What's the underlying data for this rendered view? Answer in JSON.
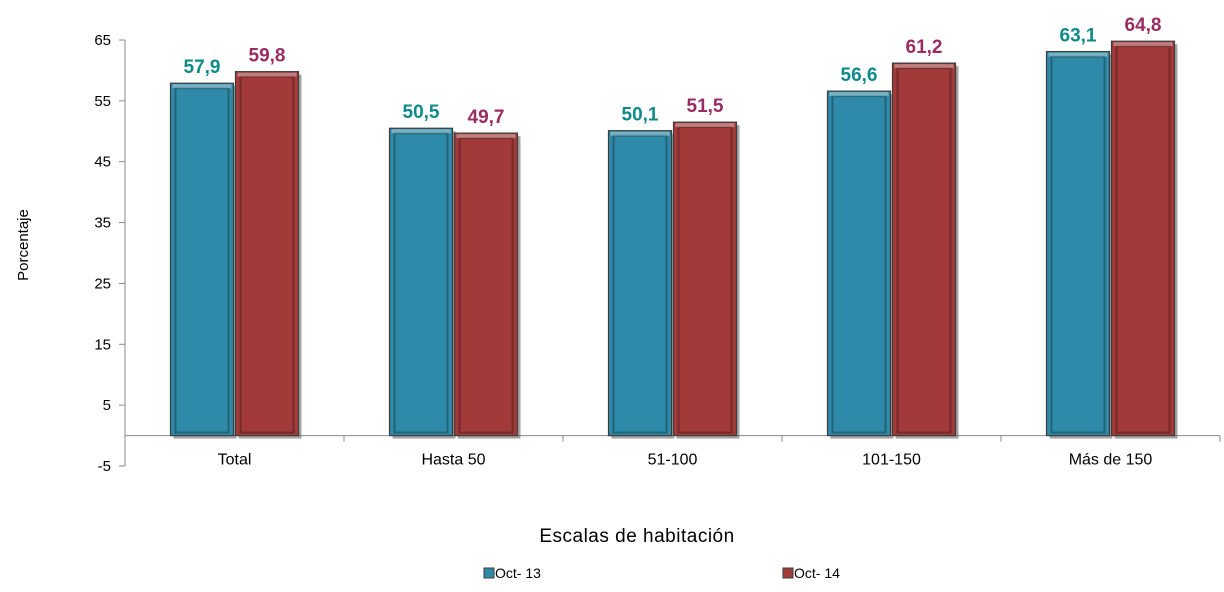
{
  "chart_data": {
    "type": "bar",
    "title": "",
    "xlabel": "Escalas de habitación",
    "ylabel": "Porcentaje",
    "categories": [
      "Total",
      "Hasta 50",
      "51-100",
      "101-150",
      "Más de 150"
    ],
    "series": [
      {
        "name": "Oct- 13",
        "values": [
          57.9,
          50.5,
          50.1,
          56.6,
          63.1
        ],
        "labels": [
          "57,9",
          "50,5",
          "50,1",
          "56,6",
          "63,1"
        ],
        "color": "#2E8AA8",
        "label_color": "#0E8A8A"
      },
      {
        "name": "Oct- 14",
        "values": [
          59.8,
          49.7,
          51.5,
          61.2,
          64.8
        ],
        "labels": [
          "59,8",
          "49,7",
          "51,5",
          "61,2",
          "64,8"
        ],
        "color": "#A23A3A",
        "label_color": "#9B2C63"
      }
    ],
    "ylim": [
      -5,
      65
    ],
    "yticks": [
      -5,
      5,
      15,
      25,
      35,
      45,
      55,
      65
    ],
    "grid": false,
    "legend_position": "bottom"
  }
}
